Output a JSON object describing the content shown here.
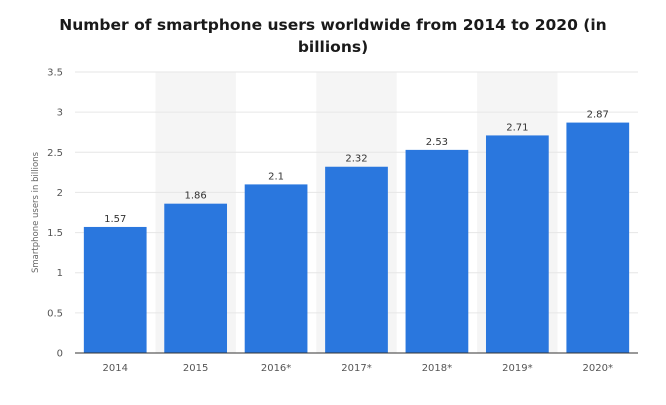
{
  "chart_data": {
    "type": "bar",
    "title": "Number of smartphone users worldwide from 2014 to 2020 (in billions)",
    "xlabel": "",
    "ylabel": "Smartphone users in billions",
    "categories": [
      "2014",
      "2015",
      "2016*",
      "2017*",
      "2018*",
      "2019*",
      "2020*"
    ],
    "values": [
      1.57,
      1.86,
      2.1,
      2.32,
      2.53,
      2.71,
      2.87
    ],
    "value_labels": [
      "1.57",
      "1.86",
      "2.1",
      "2.32",
      "2.53",
      "2.71",
      "2.87"
    ],
    "ylim": [
      0,
      3.5
    ],
    "yticks": [
      0,
      0.5,
      1,
      1.5,
      2,
      2.5,
      3,
      3.5
    ],
    "ytick_labels": [
      "0",
      "0.5",
      "1",
      "1.5",
      "2",
      "2.5",
      "3",
      "3.5"
    ],
    "grid": true,
    "legend": "none",
    "colors": {
      "bar": "#2a77de",
      "band": "#f5f5f5",
      "grid": "#e6e6e6",
      "axis": "#333333"
    }
  }
}
